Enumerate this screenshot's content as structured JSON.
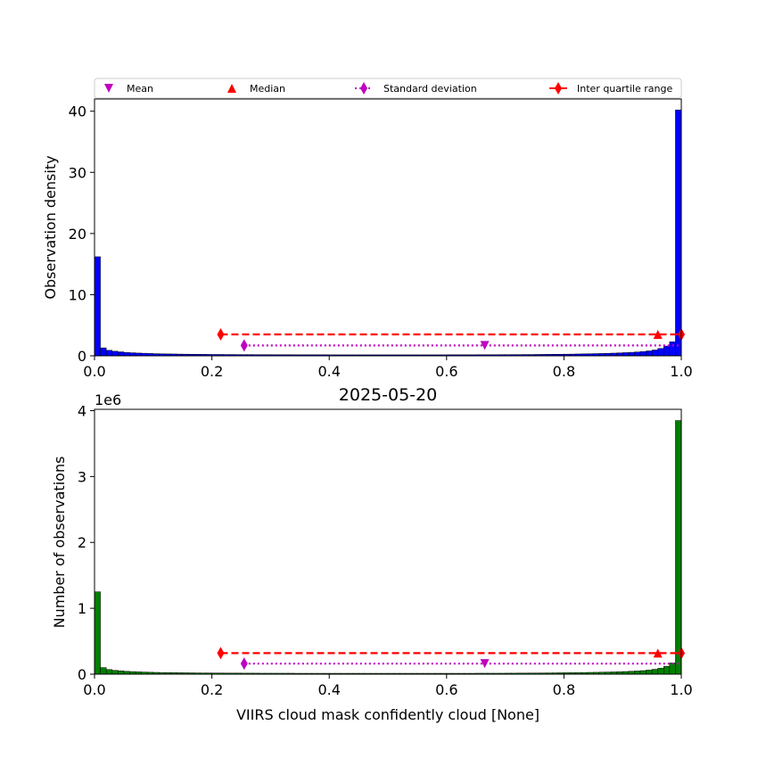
{
  "chart_data": [
    {
      "type": "bar",
      "id": "density",
      "bar_color": "#0000ff",
      "xlabel": "",
      "ylabel": "Observation density",
      "xlim": [
        0,
        1
      ],
      "ylim": [
        0,
        42
      ],
      "xticks": [
        0,
        0.2,
        0.4,
        0.6,
        0.8,
        1.0
      ],
      "xtick_labels": [
        "0.0",
        "0.2",
        "0.4",
        "0.6",
        "0.8",
        "1.0"
      ],
      "yticks": [
        0,
        10,
        20,
        30,
        40
      ],
      "ytick_labels": [
        "0",
        "10",
        "20",
        "30",
        "40"
      ],
      "bin_width": 0.01,
      "values": [
        16.2,
        1.3,
        0.9,
        0.75,
        0.65,
        0.55,
        0.5,
        0.45,
        0.42,
        0.38,
        0.35,
        0.33,
        0.31,
        0.3,
        0.28,
        0.27,
        0.26,
        0.25,
        0.24,
        0.23,
        0.22,
        0.22,
        0.21,
        0.21,
        0.2,
        0.2,
        0.2,
        0.19,
        0.19,
        0.19,
        0.18,
        0.18,
        0.18,
        0.18,
        0.17,
        0.17,
        0.17,
        0.17,
        0.17,
        0.17,
        0.16,
        0.16,
        0.16,
        0.16,
        0.16,
        0.16,
        0.16,
        0.16,
        0.16,
        0.16,
        0.16,
        0.16,
        0.16,
        0.16,
        0.16,
        0.16,
        0.16,
        0.16,
        0.16,
        0.16,
        0.17,
        0.17,
        0.17,
        0.17,
        0.17,
        0.18,
        0.18,
        0.18,
        0.18,
        0.19,
        0.19,
        0.2,
        0.2,
        0.21,
        0.21,
        0.22,
        0.23,
        0.24,
        0.25,
        0.26,
        0.27,
        0.28,
        0.3,
        0.32,
        0.34,
        0.36,
        0.38,
        0.41,
        0.44,
        0.48,
        0.52,
        0.57,
        0.63,
        0.7,
        0.8,
        0.95,
        1.2,
        1.6,
        2.3,
        40.2
      ],
      "stats": {
        "mean": 0.665,
        "median": 0.96,
        "std_range": [
          0.255,
          1.0
        ],
        "iqr_range": [
          0.215,
          1.0
        ],
        "std_y": 1.7,
        "iqr_y": 3.5
      }
    },
    {
      "type": "bar",
      "id": "counts",
      "bar_color": "#008000",
      "title": "2025-05-20",
      "xlabel": "VIIRS cloud mask confidently cloud [None]",
      "ylabel": "Number of observations",
      "y_scale_label": "1e6",
      "xlim": [
        0,
        1
      ],
      "ylim": [
        0,
        4.02
      ],
      "xticks": [
        0,
        0.2,
        0.4,
        0.6,
        0.8,
        1.0
      ],
      "xtick_labels": [
        "0.0",
        "0.2",
        "0.4",
        "0.6",
        "0.8",
        "1.0"
      ],
      "yticks": [
        0,
        1,
        2,
        3,
        4
      ],
      "ytick_labels": [
        "0",
        "1",
        "2",
        "3",
        "4"
      ],
      "bin_width": 0.01,
      "values": [
        1.25,
        0.1,
        0.07,
        0.058,
        0.05,
        0.043,
        0.039,
        0.035,
        0.032,
        0.029,
        0.027,
        0.025,
        0.024,
        0.023,
        0.022,
        0.021,
        0.02,
        0.019,
        0.018,
        0.018,
        0.017,
        0.017,
        0.016,
        0.016,
        0.016,
        0.015,
        0.015,
        0.015,
        0.014,
        0.014,
        0.014,
        0.014,
        0.014,
        0.014,
        0.013,
        0.013,
        0.013,
        0.013,
        0.013,
        0.013,
        0.013,
        0.013,
        0.013,
        0.013,
        0.013,
        0.013,
        0.013,
        0.013,
        0.013,
        0.013,
        0.013,
        0.013,
        0.013,
        0.013,
        0.013,
        0.013,
        0.013,
        0.013,
        0.013,
        0.013,
        0.013,
        0.013,
        0.013,
        0.013,
        0.013,
        0.014,
        0.014,
        0.014,
        0.014,
        0.014,
        0.015,
        0.015,
        0.016,
        0.016,
        0.017,
        0.017,
        0.018,
        0.019,
        0.02,
        0.021,
        0.022,
        0.023,
        0.024,
        0.025,
        0.027,
        0.028,
        0.03,
        0.032,
        0.034,
        0.037,
        0.04,
        0.044,
        0.048,
        0.054,
        0.062,
        0.074,
        0.09,
        0.12,
        0.17,
        3.85
      ],
      "stats": {
        "mean": 0.665,
        "median": 0.96,
        "std_range": [
          0.255,
          1.0
        ],
        "iqr_range": [
          0.215,
          1.0
        ],
        "std_y": 0.16,
        "iqr_y": 0.32
      }
    }
  ],
  "legend": {
    "placement": "top",
    "items": [
      {
        "label": "Mean",
        "marker": "triangle-down",
        "color": "#bf00bf"
      },
      {
        "label": "Median",
        "marker": "triangle-up",
        "color": "#ff0000"
      },
      {
        "label": "Standard deviation",
        "marker": "thin-diamond",
        "color": "#bf00bf"
      },
      {
        "label": "Inter quartile range",
        "marker": "thin-diamond",
        "color": "#ff0000"
      }
    ]
  }
}
